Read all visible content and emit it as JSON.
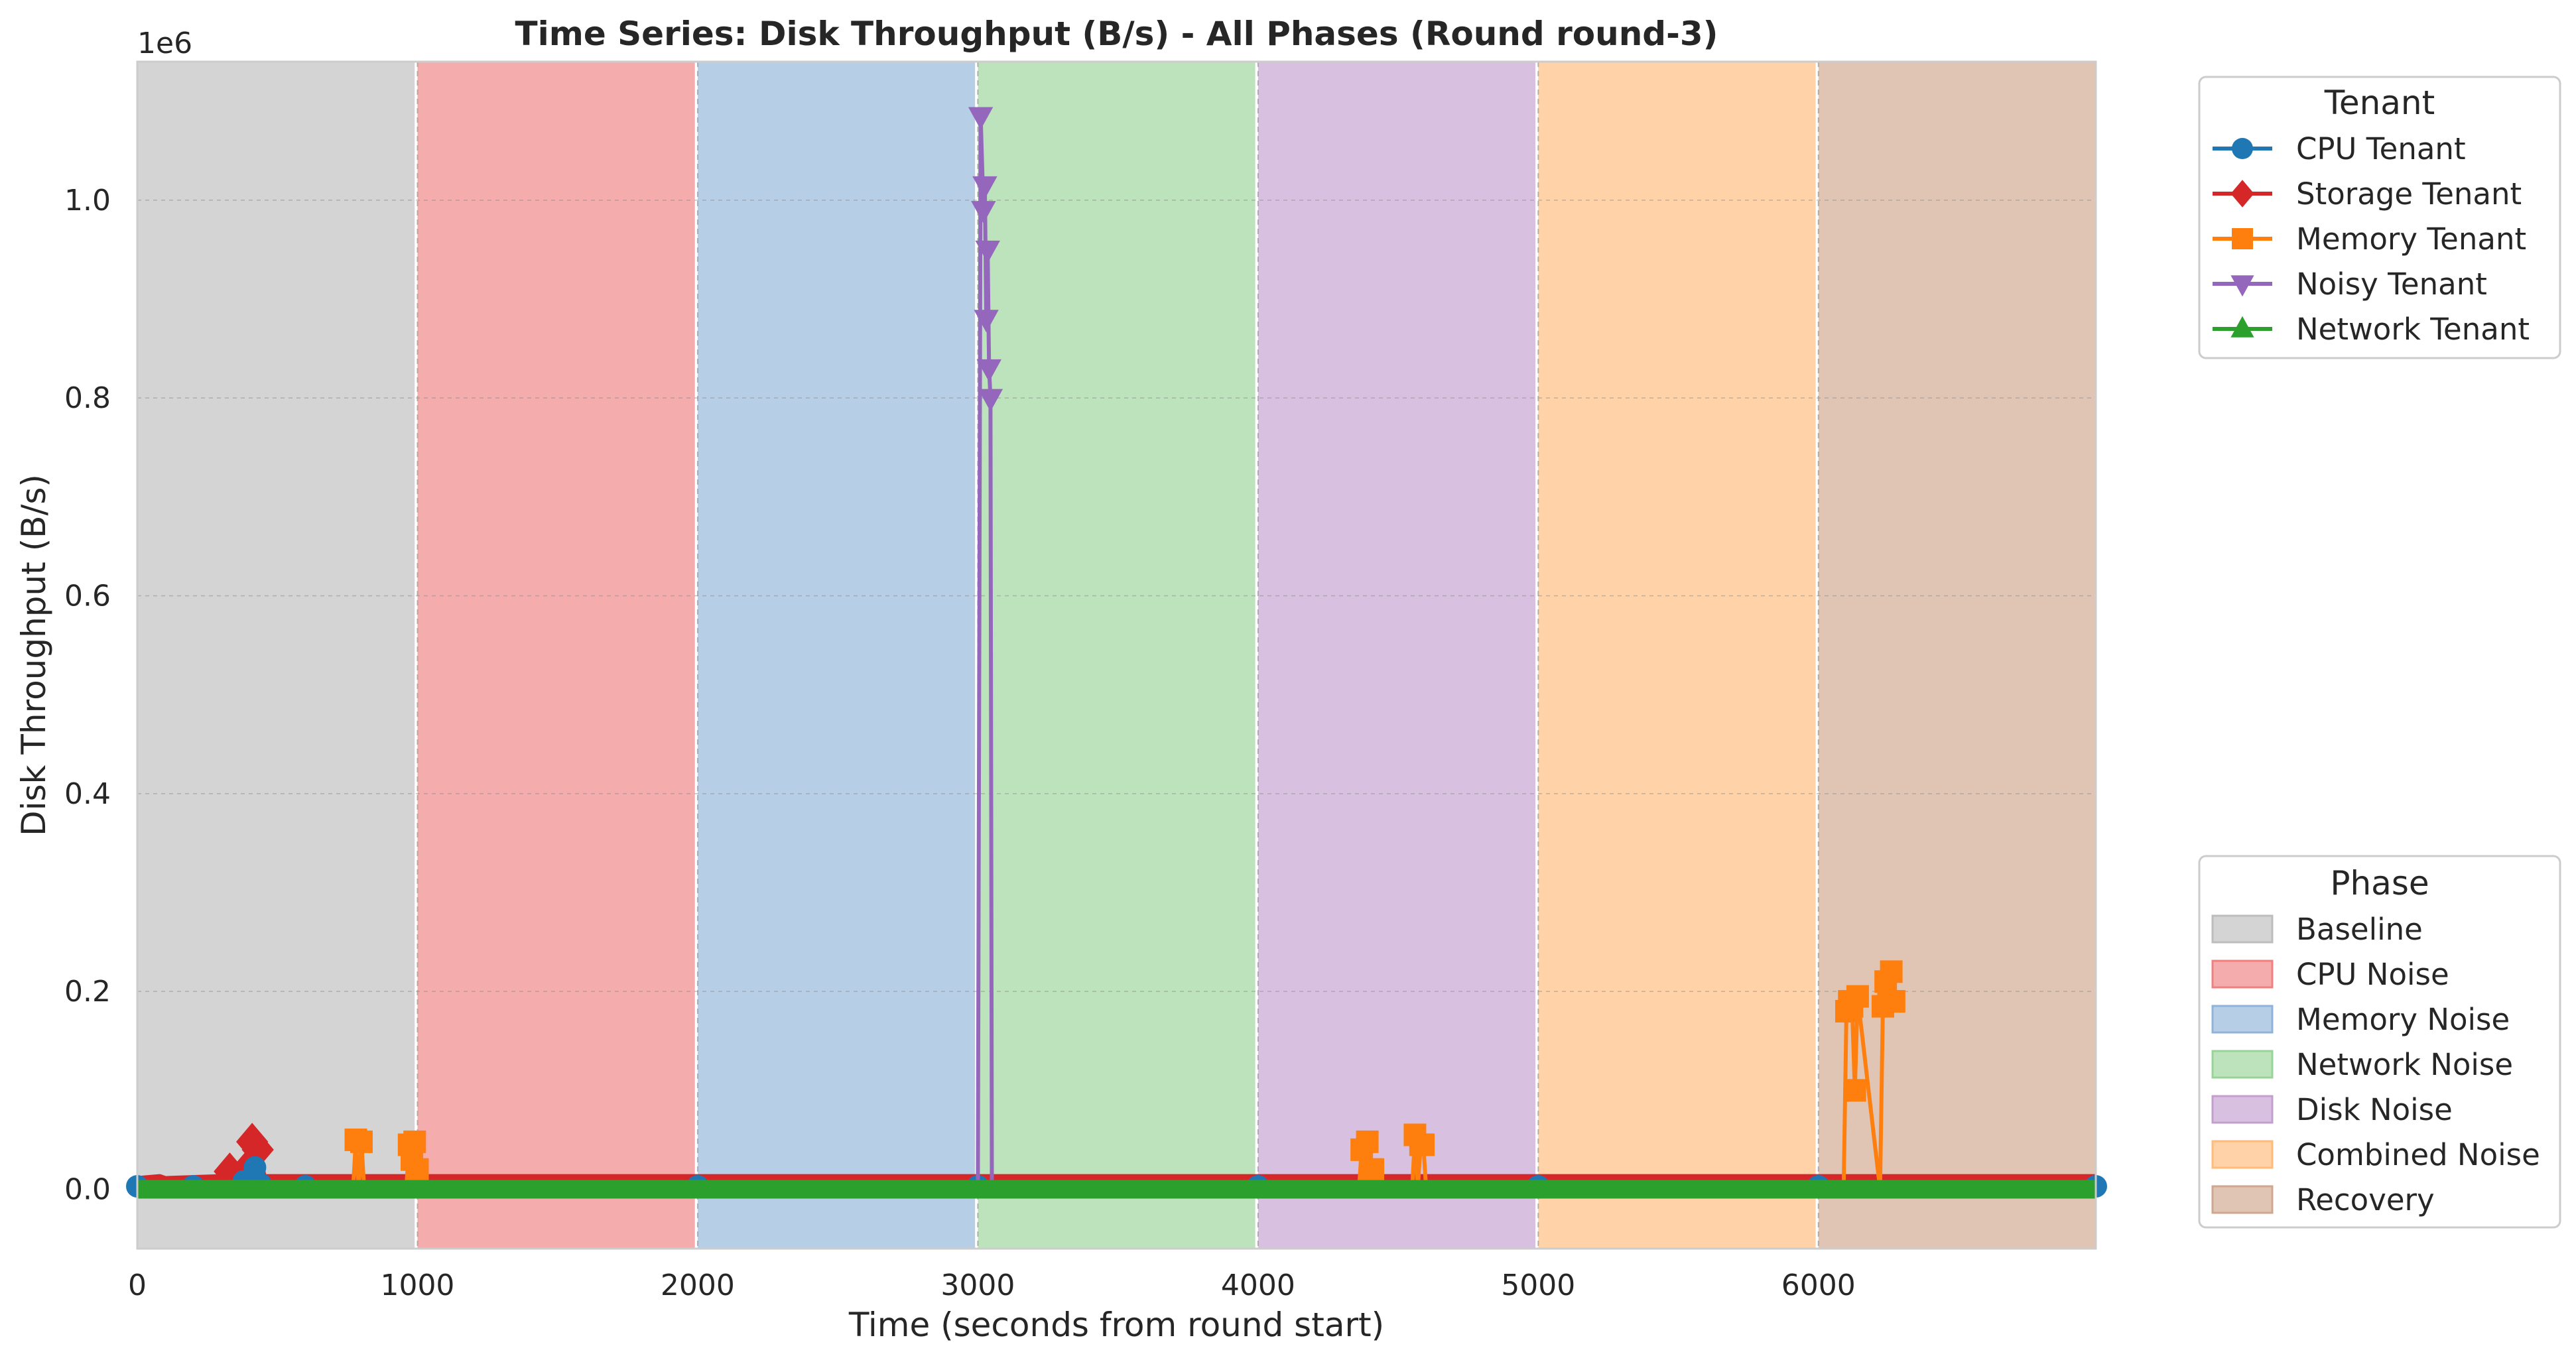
{
  "chart_data": {
    "type": "line",
    "title": "Time Series: Disk Throughput (B/s) - All Phases (Round round-3)",
    "xlabel": "Time (seconds from round start)",
    "ylabel": "Disk Throughput (B/s)",
    "y_offset_label": "1e6",
    "xlim": [
      0,
      6990
    ],
    "ylim": [
      -0.06,
      1.14
    ],
    "y_scale_factor": 1000000,
    "x_ticks": [
      0,
      1000,
      2000,
      3000,
      4000,
      5000,
      6000
    ],
    "x_tick_labels": [
      "0",
      "1000",
      "2000",
      "3000",
      "4000",
      "5000",
      "6000"
    ],
    "y_ticks": [
      0.0,
      0.2,
      0.4,
      0.6,
      0.8,
      1.0
    ],
    "y_tick_labels": [
      "0.0",
      "0.2",
      "0.4",
      "0.6",
      "0.8",
      "1.0"
    ],
    "grid": true,
    "phases": [
      {
        "name": "Baseline",
        "start": 0,
        "end": 990,
        "color": "#bdbdbd"
      },
      {
        "name": "CPU Noise",
        "start": 1000,
        "end": 1990,
        "color": "#f08080"
      },
      {
        "name": "Memory Noise",
        "start": 2000,
        "end": 2990,
        "color": "#8fb3d9"
      },
      {
        "name": "Network Noise",
        "start": 3000,
        "end": 3990,
        "color": "#98d498"
      },
      {
        "name": "Disk Noise",
        "start": 4000,
        "end": 4990,
        "color": "#c39ecf"
      },
      {
        "name": "Combined Noise",
        "start": 5000,
        "end": 5990,
        "color": "#ffbb78"
      },
      {
        "name": "Recovery",
        "start": 6000,
        "end": 6990,
        "color": "#cfa68e"
      }
    ],
    "series": [
      {
        "name": "CPU Tenant",
        "color": "#1f77b4",
        "marker": "circle",
        "x": [
          0,
          200,
          380,
          420,
          440,
          600,
          1000,
          2000,
          3000,
          4000,
          5000,
          6000,
          6990
        ],
        "y": [
          0.003,
          0.003,
          0.008,
          0.022,
          0.005,
          0.003,
          0.003,
          0.003,
          0.003,
          0.003,
          0.003,
          0.003,
          0.003
        ]
      },
      {
        "name": "Storage Tenant",
        "color": "#d62728",
        "marker": "diamond",
        "x": [
          0,
          80,
          100,
          300,
          330,
          360,
          390,
          410,
          430,
          450,
          600,
          1000,
          2000,
          3000,
          4000,
          5000,
          6000,
          6990
        ],
        "y": [
          0.01,
          0.012,
          0.01,
          0.012,
          0.018,
          0.015,
          0.02,
          0.048,
          0.04,
          0.012,
          0.012,
          0.012,
          0.012,
          0.012,
          0.012,
          0.012,
          0.012,
          0.012
        ]
      },
      {
        "name": "Memory Tenant",
        "color": "#ff7f0e",
        "marker": "square",
        "x": [
          770,
          780,
          790,
          800,
          810,
          820,
          960,
          970,
          980,
          990,
          1000,
          1010,
          4360,
          4370,
          4380,
          4390,
          4400,
          4410,
          4420,
          4550,
          4560,
          4570,
          4580,
          4590,
          4600,
          6090,
          6100,
          6110,
          6120,
          6130,
          6140,
          6220,
          6230,
          6240,
          6250,
          6260,
          6270
        ],
        "y": [
          0.0,
          0.05,
          0.0,
          0.048,
          0.0,
          0.0,
          0.0,
          0.045,
          0.03,
          0.048,
          0.02,
          0.0,
          0.0,
          0.04,
          0.0,
          0.048,
          0.02,
          0.02,
          0.0,
          0.0,
          0.055,
          0.0,
          0.045,
          0.045,
          0.0,
          0.0,
          0.18,
          0.19,
          0.185,
          0.1,
          0.195,
          0.0,
          0.185,
          0.21,
          0.19,
          0.22,
          0.19
        ]
      },
      {
        "name": "Noisy Tenant",
        "color": "#9467bd",
        "marker": "triangle-down",
        "x": [
          3000,
          3010,
          3020,
          3025,
          3030,
          3035,
          3040,
          3045,
          3050,
          3060
        ],
        "y": [
          0.0,
          1.085,
          0.99,
          1.015,
          0.88,
          0.95,
          0.83,
          0.8,
          0.0,
          0.0
        ]
      },
      {
        "name": "Network Tenant",
        "color": "#2ca02c",
        "marker": "triangle-up",
        "x": [
          0,
          1000,
          2000,
          3000,
          4000,
          5000,
          6000,
          6990
        ],
        "y": [
          0.0,
          0.0,
          0.0,
          0.0,
          0.0,
          0.0,
          0.0,
          0.0
        ]
      }
    ],
    "legends": [
      {
        "title": "Tenant",
        "placement": "upper-right-outside",
        "entries": [
          "CPU Tenant",
          "Storage Tenant",
          "Memory Tenant",
          "Noisy Tenant",
          "Network Tenant"
        ]
      },
      {
        "title": "Phase",
        "placement": "lower-right-outside",
        "entries": [
          "Baseline",
          "CPU Noise",
          "Memory Noise",
          "Network Noise",
          "Disk Noise",
          "Combined Noise",
          "Recovery"
        ]
      }
    ]
  }
}
